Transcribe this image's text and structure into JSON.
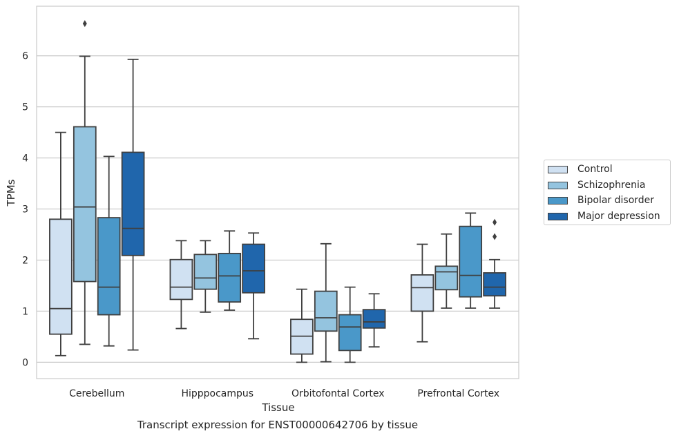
{
  "chart_data": {
    "type": "box",
    "xlabel": "Tissue",
    "ylabel": "TPMs",
    "ylim": [
      -0.32,
      6.97
    ],
    "yticks": [
      0,
      1,
      2,
      3,
      4,
      5,
      6
    ],
    "grid": "horizontal",
    "legend_placement": "right",
    "categories": [
      "Cerebellum",
      "Hipppocampus",
      "Orbitofontal Cortex",
      "Prefrontal Cortex"
    ],
    "series": [
      {
        "name": "Control",
        "color": "#d0e1f2",
        "boxes": [
          {
            "whisker_low": 0.13,
            "q1": 0.55,
            "median": 1.05,
            "q3": 2.8,
            "whisker_high": 4.5,
            "outliers": []
          },
          {
            "whisker_low": 0.66,
            "q1": 1.23,
            "median": 1.47,
            "q3": 2.01,
            "whisker_high": 2.38,
            "outliers": []
          },
          {
            "whisker_low": 0.0,
            "q1": 0.16,
            "median": 0.51,
            "q3": 0.84,
            "whisker_high": 1.43,
            "outliers": []
          },
          {
            "whisker_low": 0.4,
            "q1": 1.0,
            "median": 1.46,
            "q3": 1.71,
            "whisker_high": 2.31,
            "outliers": []
          }
        ]
      },
      {
        "name": "Schizophrenia",
        "color": "#94c4df",
        "boxes": [
          {
            "whisker_low": 0.35,
            "q1": 1.58,
            "median": 3.04,
            "q3": 4.61,
            "whisker_high": 5.99,
            "outliers": [
              6.63
            ]
          },
          {
            "whisker_low": 0.98,
            "q1": 1.43,
            "median": 1.65,
            "q3": 2.11,
            "whisker_high": 2.38,
            "outliers": []
          },
          {
            "whisker_low": 0.01,
            "q1": 0.61,
            "median": 0.87,
            "q3": 1.39,
            "whisker_high": 2.32,
            "outliers": []
          },
          {
            "whisker_low": 1.06,
            "q1": 1.42,
            "median": 1.77,
            "q3": 1.88,
            "whisker_high": 2.51,
            "outliers": []
          }
        ]
      },
      {
        "name": "Bipolar disorder",
        "color": "#4a98c9",
        "boxes": [
          {
            "whisker_low": 0.32,
            "q1": 0.93,
            "median": 1.47,
            "q3": 2.83,
            "whisker_high": 4.03,
            "outliers": []
          },
          {
            "whisker_low": 1.02,
            "q1": 1.18,
            "median": 1.69,
            "q3": 2.13,
            "whisker_high": 2.57,
            "outliers": []
          },
          {
            "whisker_low": 0.0,
            "q1": 0.23,
            "median": 0.69,
            "q3": 0.93,
            "whisker_high": 1.47,
            "outliers": []
          },
          {
            "whisker_low": 1.06,
            "q1": 1.28,
            "median": 1.7,
            "q3": 2.66,
            "whisker_high": 2.92,
            "outliers": []
          }
        ]
      },
      {
        "name": "Major depression",
        "color": "#2066ac",
        "boxes": [
          {
            "whisker_low": 0.24,
            "q1": 2.09,
            "median": 2.62,
            "q3": 4.11,
            "whisker_high": 5.93,
            "outliers": []
          },
          {
            "whisker_low": 0.46,
            "q1": 1.36,
            "median": 1.79,
            "q3": 2.31,
            "whisker_high": 2.53,
            "outliers": []
          },
          {
            "whisker_low": 0.3,
            "q1": 0.67,
            "median": 0.79,
            "q3": 1.03,
            "whisker_high": 1.34,
            "outliers": []
          },
          {
            "whisker_low": 1.06,
            "q1": 1.3,
            "median": 1.47,
            "q3": 1.75,
            "whisker_high": 2.01,
            "outliers": [
              2.46,
              2.74
            ]
          }
        ]
      }
    ]
  },
  "caption": "Transcript expression for ENST00000642706 by tissue"
}
